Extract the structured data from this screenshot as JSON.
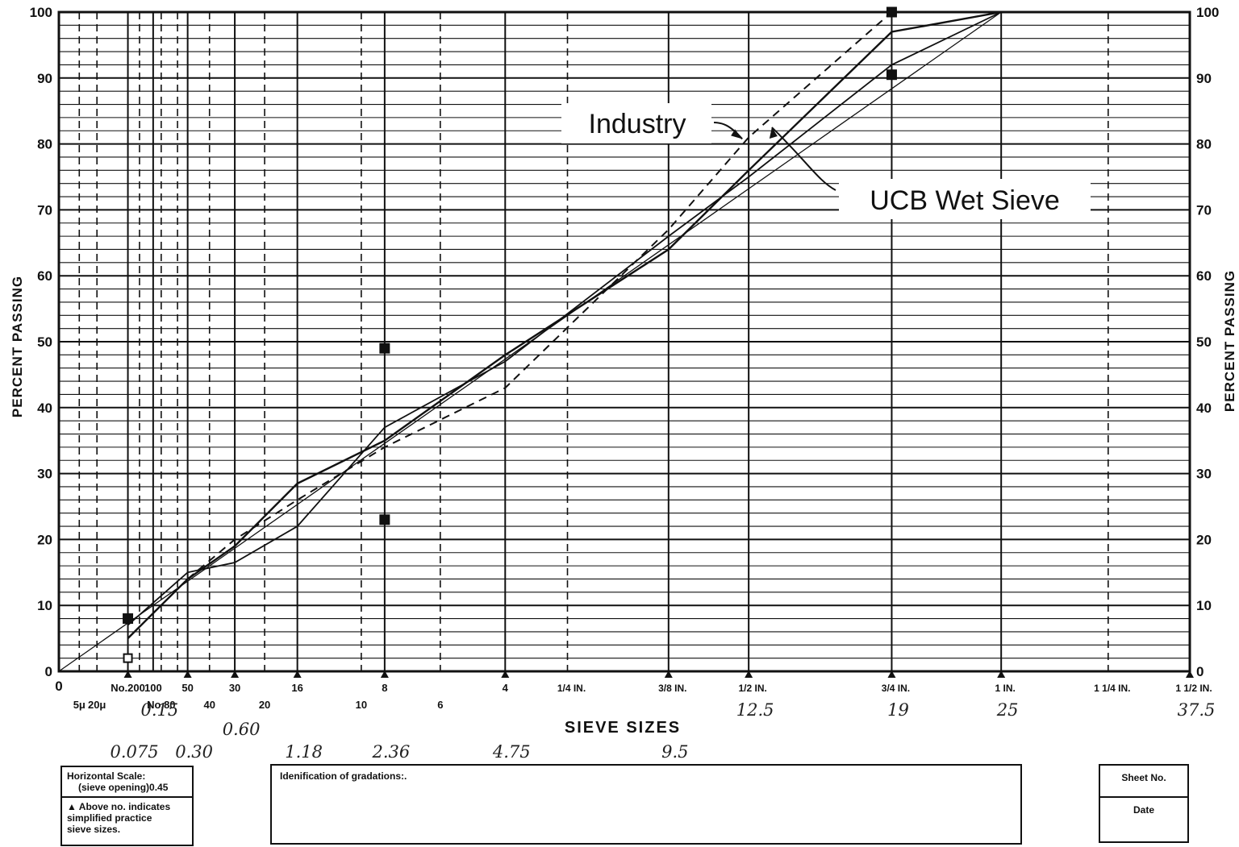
{
  "chart_data": {
    "type": "line",
    "ylabel": "PERCENT PASSING",
    "xlabel": "SIEVE SIZES",
    "ylim": [
      0,
      100
    ],
    "y_ticks": [
      0,
      10,
      20,
      30,
      40,
      50,
      60,
      70,
      80,
      90,
      100
    ],
    "x_scale": "power 0.45 (sieve opening)",
    "sieve_labels": [
      {
        "label": "No.200",
        "mm": 0.075,
        "triangle": true
      },
      {
        "label": "100",
        "mm": 0.15
      },
      {
        "label": "50",
        "mm": 0.3,
        "triangle": true
      },
      {
        "label": "30",
        "mm": 0.6,
        "triangle": true
      },
      {
        "label": "16",
        "mm": 1.18,
        "triangle": true
      },
      {
        "label": "8",
        "mm": 2.36,
        "triangle": true
      },
      {
        "label": "4",
        "mm": 4.75,
        "triangle": true
      },
      {
        "label": "1/4 IN.",
        "mm": 6.35
      },
      {
        "label": "3/8 IN.",
        "mm": 9.5,
        "triangle": true
      },
      {
        "label": "1/2 IN.",
        "mm": 12.5,
        "triangle": true
      },
      {
        "label": "3/4 IN.",
        "mm": 19,
        "triangle": true
      },
      {
        "label": "1 IN.",
        "mm": 25,
        "triangle": true
      },
      {
        "label": "1 1/4 IN.",
        "mm": 31.75
      },
      {
        "label": "1 1/2 IN.",
        "mm": 37.5,
        "triangle": true
      }
    ],
    "sieve_labels_row2": [
      {
        "label": "5μ",
        "mm": 0.005
      },
      {
        "label": "20μ",
        "mm": 0.02
      },
      {
        "label": "No.80",
        "mm": 0.18
      },
      {
        "label": "40",
        "mm": 0.425
      },
      {
        "label": "20",
        "mm": 0.85
      },
      {
        "label": "10",
        "mm": 2.0
      },
      {
        "label": "6",
        "mm": 3.35
      }
    ],
    "handwritten_labels": [
      {
        "label": "0.075",
        "mm": 0.075,
        "row": 3
      },
      {
        "label": "0.15",
        "mm": 0.15,
        "row": 1
      },
      {
        "label": "0.30",
        "mm": 0.3,
        "row": 3
      },
      {
        "label": "0.60",
        "mm": 0.6,
        "row": 2
      },
      {
        "label": "1.18",
        "mm": 1.18,
        "row": 3
      },
      {
        "label": "2.36",
        "mm": 2.36,
        "row": 3
      },
      {
        "label": "4.75",
        "mm": 4.75,
        "row": 3
      },
      {
        "label": "9.5",
        "mm": 9.5,
        "row": 3
      },
      {
        "label": "12.5",
        "mm": 12.5,
        "row": 1
      },
      {
        "label": "19",
        "mm": 19,
        "row": 1
      },
      {
        "label": "25",
        "mm": 25,
        "row": 1
      },
      {
        "label": "37.5",
        "mm": 37.5,
        "row": 1
      }
    ],
    "x_origin_label": "0",
    "series": [
      {
        "style": "max-density",
        "points": [
          [
            0,
            0
          ],
          [
            25,
            100
          ]
        ]
      },
      {
        "style": "solid-upper",
        "points": [
          [
            0.075,
            5
          ],
          [
            0.3,
            14
          ],
          [
            0.6,
            19
          ],
          [
            1.18,
            28.5
          ],
          [
            2.36,
            35
          ],
          [
            4.75,
            48
          ],
          [
            9.5,
            64
          ],
          [
            12.5,
            76
          ],
          [
            19,
            97
          ],
          [
            25,
            100
          ]
        ]
      },
      {
        "style": "solid-lower",
        "points": [
          [
            0.075,
            7
          ],
          [
            0.3,
            15
          ],
          [
            0.6,
            16.5
          ],
          [
            1.18,
            22
          ],
          [
            2.36,
            37
          ],
          [
            4.75,
            47
          ],
          [
            9.5,
            66
          ],
          [
            12.5,
            75
          ],
          [
            19,
            92
          ],
          [
            25,
            100
          ]
        ]
      },
      {
        "style": "dashed",
        "points": [
          [
            0.3,
            14
          ],
          [
            0.6,
            20
          ],
          [
            1.18,
            26
          ],
          [
            2.36,
            34
          ],
          [
            4.75,
            43
          ],
          [
            9.5,
            67
          ],
          [
            12.5,
            81
          ],
          [
            19,
            100
          ],
          [
            25,
            100
          ]
        ]
      }
    ],
    "markers": [
      {
        "mm": 0.075,
        "y": 8,
        "shape": "filled-square"
      },
      {
        "mm": 0.075,
        "y": 2,
        "shape": "open-square"
      },
      {
        "mm": 2.36,
        "y": 49,
        "shape": "filled-square"
      },
      {
        "mm": 2.36,
        "y": 23,
        "shape": "filled-square"
      },
      {
        "mm": 19,
        "y": 100,
        "shape": "filled-square"
      },
      {
        "mm": 19,
        "y": 90.5,
        "shape": "filled-square"
      }
    ],
    "annotations": [
      {
        "text": "Industry",
        "points_to": {
          "mm": 12.5,
          "y": 81
        }
      },
      {
        "text": "UCB Wet Sieve",
        "points_to": {
          "mm": 14,
          "y": 83
        }
      }
    ]
  },
  "footer": {
    "scale_box": {
      "line1": "Horizontal Scale:",
      "line2": "(sieve opening)",
      "value": "0.45",
      "note_line1": "Above no. indicates",
      "note_line2": "simplified practice",
      "note_line3": "sieve sizes."
    },
    "identification": "Idenification of gradations:.",
    "sheet_no": "Sheet No.",
    "date": "Date"
  }
}
